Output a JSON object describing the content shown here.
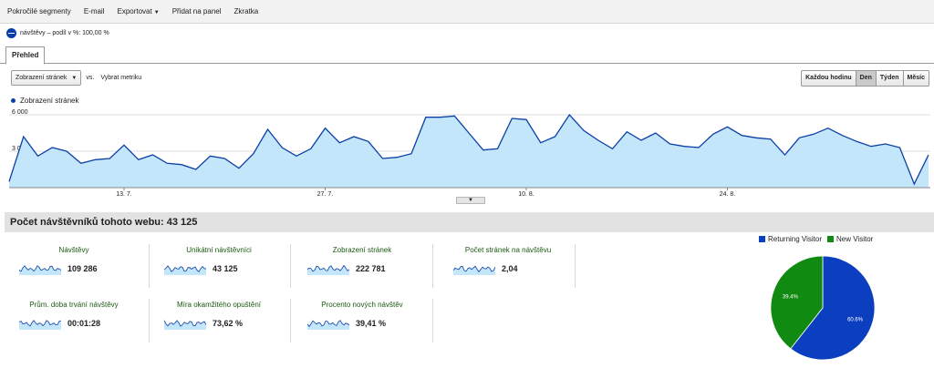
{
  "toolbar": {
    "items": [
      "Pokročilé segmenty",
      "E-mail",
      "Exportovat",
      "Přidat na panel",
      "Zkratka"
    ]
  },
  "segment": {
    "label": "návštěvy – podíl v %: 100,00 %"
  },
  "tabs": [
    {
      "label": "Přehled"
    }
  ],
  "controls": {
    "metric_select": "Zobrazení stránek",
    "vs": "vs.",
    "pick_metric": "Vybrat metriku"
  },
  "granularity": [
    "Každou hodinu",
    "Den",
    "Týden",
    "Měsíc"
  ],
  "granularity_active": "Den",
  "chart_data": {
    "type": "area",
    "series": [
      {
        "name": "Zobrazení stránek",
        "color": "#0b3fa7",
        "fill": "#c4e6fa"
      }
    ],
    "y_ticks": [
      "6 000",
      "3 000"
    ],
    "y_tick_values": [
      6000,
      3000
    ],
    "ylim": [
      0,
      6300
    ],
    "x_tick_labels": [
      "13. 7.",
      "27. 7.",
      "10. 8.",
      "24. 8."
    ],
    "x_tick_index": [
      8,
      22,
      36,
      50
    ],
    "values": [
      500,
      4200,
      2600,
      3300,
      3000,
      2000,
      2300,
      2400,
      3500,
      2300,
      2700,
      2000,
      1900,
      1500,
      2600,
      2400,
      1600,
      2800,
      4800,
      3300,
      2600,
      3200,
      4900,
      3700,
      4200,
      3800,
      2400,
      2500,
      2800,
      5800,
      5800,
      5900,
      4500,
      3100,
      3200,
      5700,
      5600,
      3700,
      4200,
      6000,
      4700,
      3900,
      3200,
      4600,
      3900,
      4500,
      3600,
      3400,
      3300,
      4400,
      5000,
      4300,
      4100,
      4000,
      2700,
      4100,
      4400,
      4900,
      4300,
      3800,
      3400,
      3600,
      3300,
      300,
      2700
    ]
  },
  "visitors_heading": "Počet návštěvníků tohoto webu: 43 125",
  "metrics": [
    {
      "label": "Návštěvy",
      "value": "109 286"
    },
    {
      "label": "Unikátní návštěvníci",
      "value": "43 125"
    },
    {
      "label": "Zobrazení stránek",
      "value": "222 781"
    },
    {
      "label": "Počet stránek na návštěvu",
      "value": "2,04"
    },
    {
      "label": "Prům. doba trvání návštěvy",
      "value": "00:01:28"
    },
    {
      "label": "Míra okamžitého opuštění",
      "value": "73,62 %"
    },
    {
      "label": "Procento nových návštěv",
      "value": "39,41 %"
    }
  ],
  "pie": {
    "legend": [
      {
        "name": "Returning Visitor",
        "color": "#0b3fc0"
      },
      {
        "name": "New Visitor",
        "color": "#118a11"
      }
    ],
    "values": [
      60.6,
      39.4
    ],
    "labels": [
      "60.6%",
      "39.4%"
    ]
  }
}
